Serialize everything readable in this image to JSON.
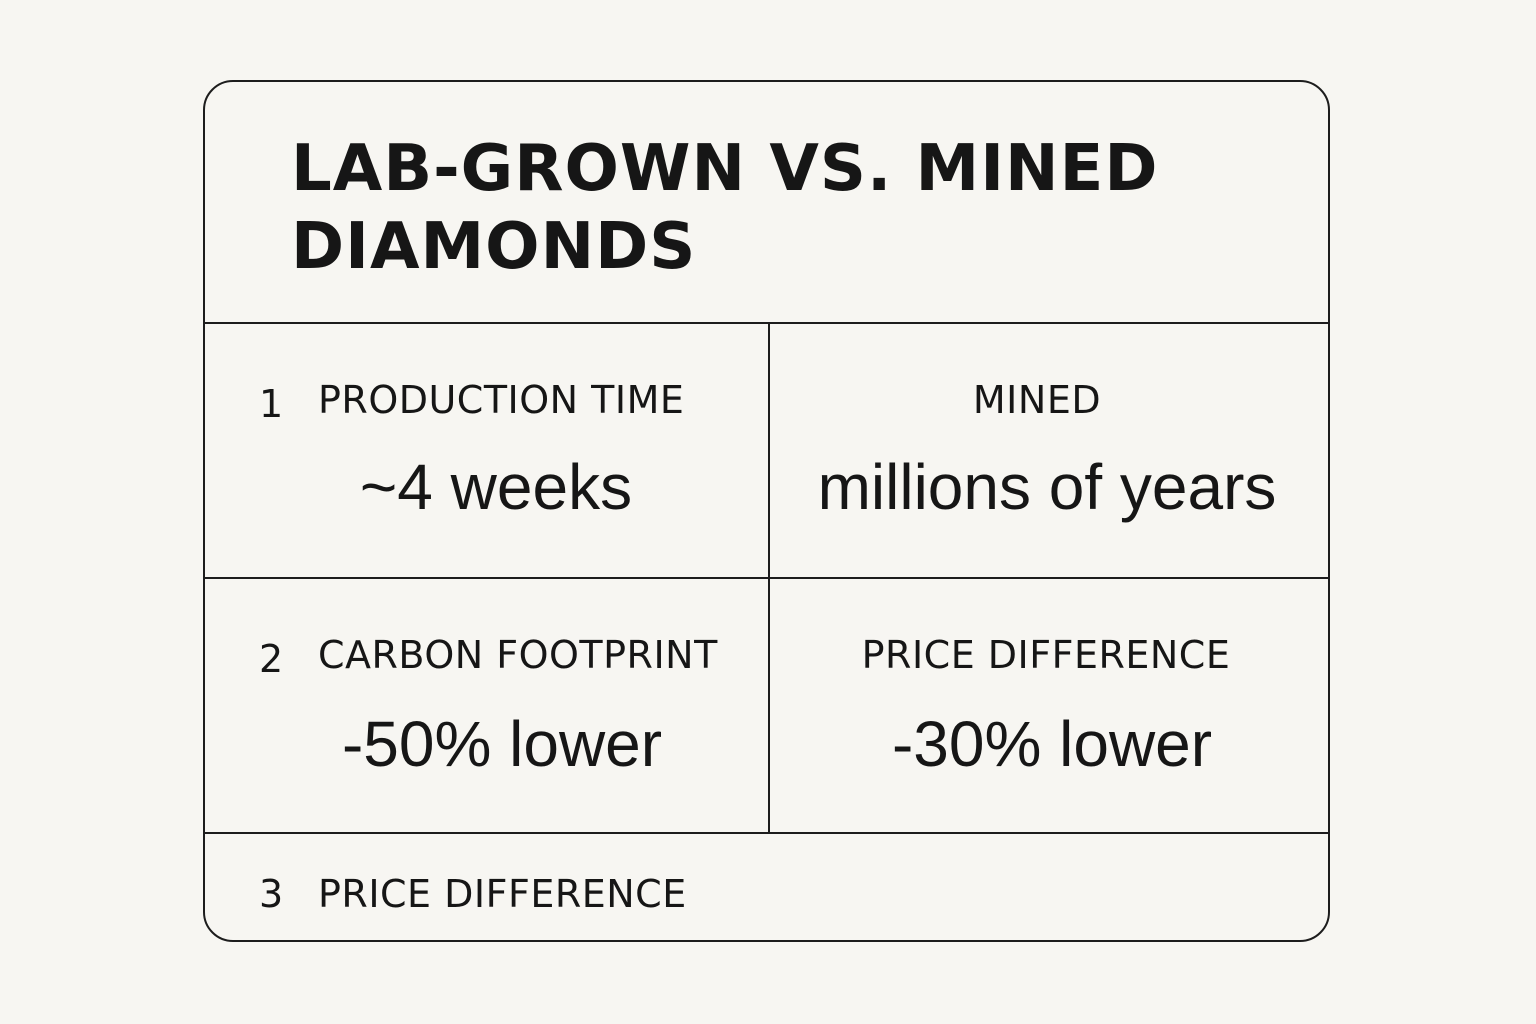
{
  "title": "LAB-GROWN VS. MINED DIAMONDS",
  "rows": [
    {
      "number": "1",
      "left_label": "PRODUCTION TIME",
      "left_value": "~4 weeks",
      "right_label": "MINED",
      "right_value": "millions of years"
    },
    {
      "number": "2",
      "left_label": "CARBON FOOTPRINT",
      "left_value": "-50% lower",
      "right_label": "PRICE DIFFERENCE",
      "right_value": "-30% lower"
    },
    {
      "number": "3",
      "left_label": "PRICE DIFFERENCE"
    }
  ]
}
